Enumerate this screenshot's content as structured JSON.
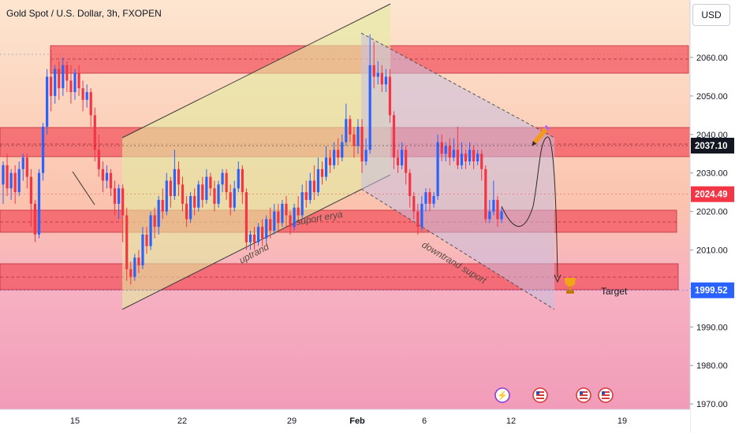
{
  "header": {
    "title": "Gold Spot / U.S. Dollar, 3h, FXOPEN",
    "currency": "USD"
  },
  "chart_data": {
    "type": "candlestick",
    "ylim": [
      1970,
      2067.5
    ],
    "y_ticks": [
      2060,
      2050,
      2040,
      2030,
      2020,
      2010,
      2000,
      1990,
      1980,
      1970
    ],
    "y_tick_labels": [
      "2060.00",
      "2050.00",
      "2040.00",
      "2030.00",
      "2020.00",
      "2010.00",
      "2000.00",
      "1990.00",
      "1980.00",
      "1970.00"
    ],
    "x_tick_labels": [
      "15",
      "22",
      "29",
      "Feb",
      "6",
      "12",
      "19"
    ],
    "price_labels": [
      {
        "value": 2037.1,
        "text": "2037.10",
        "color": "#131722"
      },
      {
        "value": 2024.49,
        "text": "2024.49",
        "color": "#f23645"
      },
      {
        "value": 1999.52,
        "text": "1999.52",
        "color": "#2962ff"
      }
    ],
    "annotations": [
      "suport erya",
      "uptrand",
      "downtrand suport",
      "Target"
    ],
    "colors": {
      "up": "#2962ff",
      "down": "#f23645",
      "zone": "#f2515b",
      "uptrend_channel": "#e2eba0",
      "downtrend_channel": "#c8bfe0"
    },
    "candles": [
      [
        2027,
        2032,
        2022,
        2033
      ],
      [
        2032,
        2026,
        2024,
        2035
      ],
      [
        2026,
        2030,
        2023,
        2031
      ],
      [
        2030,
        2025,
        2022,
        2032
      ],
      [
        2025,
        2031,
        2024,
        2033
      ],
      [
        2031,
        2034,
        2028,
        2035
      ],
      [
        2034,
        2029,
        2026,
        2035
      ],
      [
        2029,
        2022,
        2016,
        2031
      ],
      [
        2022,
        2014,
        2012,
        2023
      ],
      [
        2014,
        2030,
        2013,
        2031
      ],
      [
        2030,
        2042,
        2028,
        2043
      ],
      [
        2042,
        2055,
        2040,
        2057
      ],
      [
        2055,
        2050,
        2046,
        2062
      ],
      [
        2050,
        2057,
        2048,
        2058
      ],
      [
        2057,
        2052,
        2049,
        2059
      ],
      [
        2052,
        2058,
        2050,
        2060
      ],
      [
        2058,
        2054,
        2051,
        2059
      ],
      [
        2054,
        2051,
        2048,
        2058
      ],
      [
        2051,
        2056,
        2049,
        2057
      ],
      [
        2056,
        2052,
        2050,
        2058
      ],
      [
        2052,
        2049,
        2046,
        2054
      ],
      [
        2049,
        2051,
        2047,
        2053
      ],
      [
        2051,
        2045,
        2042,
        2052
      ],
      [
        2045,
        2036,
        2033,
        2047
      ],
      [
        2036,
        2031,
        2029,
        2040
      ],
      [
        2031,
        2028,
        2025,
        2033
      ],
      [
        2028,
        2030,
        2026,
        2032
      ],
      [
        2030,
        2026,
        2024,
        2031
      ],
      [
        2026,
        2022,
        2019,
        2028
      ],
      [
        2022,
        2026,
        2018,
        2027
      ],
      [
        2026,
        2019,
        2012,
        2027
      ],
      [
        2019,
        2005,
        2002,
        2021
      ],
      [
        2005,
        2003,
        2001,
        2007
      ],
      [
        2003,
        2008,
        2002,
        2009
      ],
      [
        2008,
        2006,
        2004,
        2010
      ],
      [
        2006,
        2014,
        2005,
        2016
      ],
      [
        2014,
        2011,
        2009,
        2016
      ],
      [
        2011,
        2019,
        2010,
        2020
      ],
      [
        2019,
        2016,
        2013,
        2021
      ],
      [
        2016,
        2023,
        2014,
        2024
      ],
      [
        2023,
        2020,
        2018,
        2026
      ],
      [
        2020,
        2028,
        2019,
        2030
      ],
      [
        2028,
        2024,
        2021,
        2029
      ],
      [
        2024,
        2031,
        2023,
        2036
      ],
      [
        2031,
        2027,
        2024,
        2033
      ],
      [
        2027,
        2022,
        2020,
        2029
      ],
      [
        2022,
        2018,
        2016,
        2024
      ],
      [
        2018,
        2024,
        2017,
        2025
      ],
      [
        2024,
        2021,
        2019,
        2026
      ],
      [
        2021,
        2027,
        2020,
        2028
      ],
      [
        2027,
        2023,
        2021,
        2029
      ],
      [
        2023,
        2029,
        2022,
        2031
      ],
      [
        2029,
        2026,
        2024,
        2030
      ],
      [
        2026,
        2022,
        2020,
        2028
      ],
      [
        2022,
        2027,
        2021,
        2028
      ],
      [
        2027,
        2030,
        2025,
        2031
      ],
      [
        2030,
        2025,
        2023,
        2031
      ],
      [
        2025,
        2021,
        2019,
        2027
      ],
      [
        2021,
        2026,
        2020,
        2028
      ],
      [
        2026,
        2031,
        2025,
        2033
      ],
      [
        2031,
        2025,
        2022,
        2032
      ],
      [
        2025,
        2012,
        2010,
        2026
      ],
      [
        2012,
        2014,
        2010,
        2015
      ],
      [
        2014,
        2012,
        2010,
        2016
      ],
      [
        2012,
        2016,
        2011,
        2017
      ],
      [
        2016,
        2013,
        2011,
        2018
      ],
      [
        2013,
        2018,
        2012,
        2019
      ],
      [
        2018,
        2015,
        2013,
        2021
      ],
      [
        2015,
        2020,
        2014,
        2022
      ],
      [
        2020,
        2017,
        2015,
        2022
      ],
      [
        2017,
        2022,
        2016,
        2023
      ],
      [
        2022,
        2019,
        2016,
        2024
      ],
      [
        2019,
        2016,
        2014,
        2020
      ],
      [
        2016,
        2021,
        2015,
        2022
      ],
      [
        2021,
        2019,
        2017,
        2024
      ],
      [
        2019,
        2025,
        2018,
        2027
      ],
      [
        2025,
        2023,
        2021,
        2028
      ],
      [
        2023,
        2028,
        2022,
        2030
      ],
      [
        2028,
        2025,
        2023,
        2032
      ],
      [
        2025,
        2031,
        2024,
        2034
      ],
      [
        2031,
        2029,
        2027,
        2033
      ],
      [
        2029,
        2034,
        2028,
        2037
      ],
      [
        2034,
        2032,
        2030,
        2036
      ],
      [
        2032,
        2036,
        2031,
        2038
      ],
      [
        2036,
        2034,
        2032,
        2039
      ],
      [
        2034,
        2038,
        2033,
        2040
      ],
      [
        2038,
        2044,
        2037,
        2048
      ],
      [
        2044,
        2040,
        2038,
        2045
      ],
      [
        2040,
        2037,
        2034,
        2042
      ],
      [
        2037,
        2042,
        2035,
        2044
      ],
      [
        2042,
        2033,
        2030,
        2044
      ],
      [
        2033,
        2036,
        2032,
        2039
      ],
      [
        2036,
        2058,
        2035,
        2066
      ],
      [
        2058,
        2055,
        2052,
        2064
      ],
      [
        2055,
        2056,
        2053,
        2059
      ],
      [
        2056,
        2053,
        2051,
        2058
      ],
      [
        2053,
        2055,
        2051,
        2057
      ],
      [
        2055,
        2045,
        2043,
        2057
      ],
      [
        2045,
        2034,
        2031,
        2046
      ],
      [
        2034,
        2032,
        2030,
        2036
      ],
      [
        2032,
        2036,
        2031,
        2038
      ],
      [
        2036,
        2030,
        2027,
        2037
      ],
      [
        2030,
        2024,
        2021,
        2031
      ],
      [
        2024,
        2020,
        2018,
        2025
      ],
      [
        2020,
        2016,
        2014,
        2022
      ],
      [
        2016,
        2022,
        2015,
        2024
      ],
      [
        2022,
        2025,
        2020,
        2026
      ],
      [
        2025,
        2022,
        2020,
        2026
      ],
      [
        2022,
        2024,
        2021,
        2025
      ],
      [
        2024,
        2038,
        2023,
        2040
      ],
      [
        2038,
        2035,
        2033,
        2040
      ],
      [
        2035,
        2037,
        2033,
        2038
      ],
      [
        2037,
        2034,
        2032,
        2039
      ],
      [
        2034,
        2036,
        2033,
        2039
      ],
      [
        2036,
        2032,
        2031,
        2042
      ],
      [
        2032,
        2035,
        2031,
        2038
      ],
      [
        2035,
        2033,
        2031,
        2036
      ],
      [
        2033,
        2036,
        2032,
        2038
      ],
      [
        2036,
        2033,
        2031,
        2037
      ],
      [
        2033,
        2035,
        2032,
        2036
      ],
      [
        2035,
        2031,
        2028,
        2036
      ],
      [
        2031,
        2018,
        2017,
        2032
      ],
      [
        2018,
        2020,
        2017,
        2023
      ],
      [
        2020,
        2023,
        2019,
        2028
      ],
      [
        2023,
        2018,
        2016,
        2024
      ],
      [
        2018,
        2020,
        2017,
        2021
      ]
    ]
  }
}
